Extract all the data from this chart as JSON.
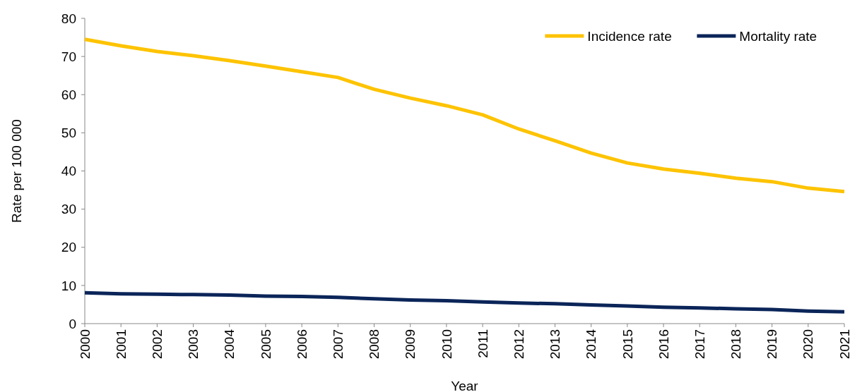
{
  "chart_data": {
    "type": "line",
    "xlabel": "Year",
    "ylabel": "Rate per 100 000",
    "categories": [
      "2000",
      "2001",
      "2002",
      "2003",
      "2004",
      "2005",
      "2006",
      "2007",
      "2008",
      "2009",
      "2010",
      "2011",
      "2012",
      "2013",
      "2014",
      "2015",
      "2016",
      "2017",
      "2018",
      "2019",
      "2020",
      "2021"
    ],
    "series": [
      {
        "name": "Incidence rate",
        "color": "#fdc300",
        "values": [
          74.5,
          72.8,
          71.3,
          70.2,
          68.9,
          67.5,
          66.0,
          64.5,
          61.4,
          59.1,
          57.1,
          54.7,
          51.0,
          47.9,
          44.7,
          42.1,
          40.5,
          39.4,
          38.1,
          37.2,
          35.5,
          34.6
        ]
      },
      {
        "name": "Mortality rate",
        "color": "#0b2559",
        "values": [
          8.1,
          7.8,
          7.7,
          7.6,
          7.5,
          7.2,
          7.1,
          6.9,
          6.5,
          6.2,
          6.0,
          5.7,
          5.4,
          5.2,
          4.9,
          4.6,
          4.3,
          4.1,
          3.9,
          3.7,
          3.3,
          3.1
        ]
      }
    ],
    "ylim": [
      0,
      80
    ],
    "yticks": [
      0,
      10,
      20,
      30,
      40,
      50,
      60,
      70,
      80
    ],
    "grid": false,
    "legend": "top right",
    "marker": "none",
    "line_style": "solid"
  }
}
